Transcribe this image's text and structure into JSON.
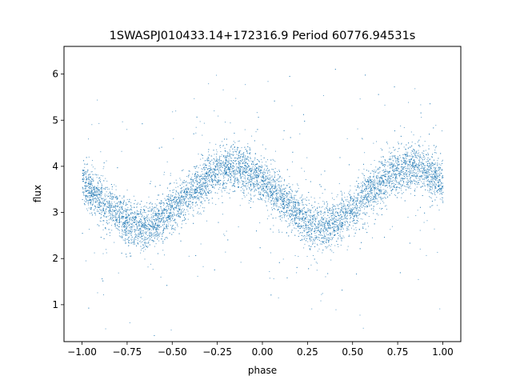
{
  "chart_data": {
    "type": "scatter",
    "title": "1SWASPJ010433.14+172316.9 Period 60776.94531s",
    "xlabel": "phase",
    "ylabel": "flux",
    "xlim": [
      -1.1,
      1.1
    ],
    "ylim": [
      0.2,
      6.6
    ],
    "x_ticks": [
      -1.0,
      -0.75,
      -0.5,
      -0.25,
      0.0,
      0.25,
      0.5,
      0.75,
      1.0
    ],
    "x_tick_labels": [
      "−1.00",
      "−0.75",
      "−0.50",
      "−0.25",
      "0.00",
      "0.25",
      "0.50",
      "0.75",
      "1.00"
    ],
    "y_ticks": [
      1,
      2,
      3,
      4,
      5,
      6
    ],
    "y_tick_labels": [
      "1",
      "2",
      "3",
      "4",
      "5",
      "6"
    ],
    "grid": false,
    "legend": "none",
    "marker_color": "#1f77b4",
    "series": [
      {
        "x": [
          -1.0,
          -0.9,
          -0.8,
          -0.75,
          -0.7,
          -0.65,
          -0.6,
          -0.5,
          -0.4,
          -0.3,
          -0.2,
          -0.15,
          -0.1,
          0.0,
          0.1,
          0.2,
          0.25,
          0.3,
          0.35,
          0.4,
          0.5,
          0.6,
          0.7,
          0.8,
          0.85,
          0.9,
          1.0
        ],
        "y": [
          3.65,
          3.3,
          2.95,
          2.8,
          2.72,
          2.7,
          2.78,
          3.05,
          3.45,
          3.78,
          3.98,
          4.0,
          3.95,
          3.65,
          3.3,
          2.95,
          2.8,
          2.72,
          2.7,
          2.78,
          3.05,
          3.45,
          3.78,
          3.98,
          4.0,
          3.95,
          3.65
        ],
        "scatter_width": 0.75
      }
    ]
  }
}
